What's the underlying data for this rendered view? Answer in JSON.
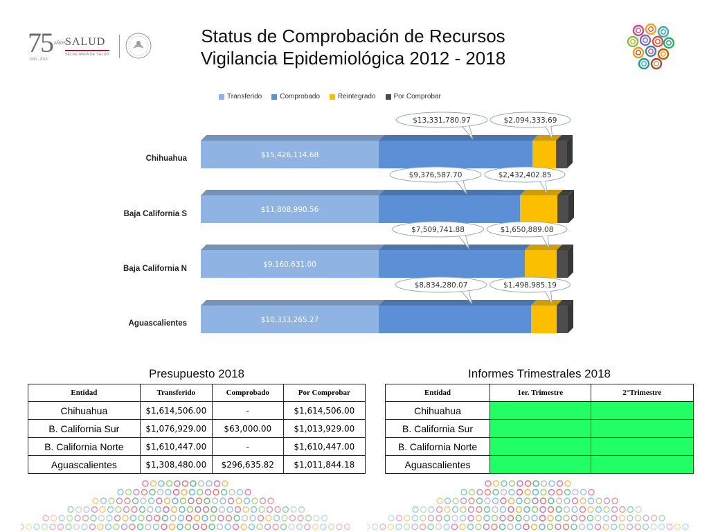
{
  "header": {
    "logo_75": {
      "number": "75",
      "anos": "AÑOS",
      "years": "1943 - 2018"
    },
    "salud": {
      "word": "SALUD",
      "sub": "SECRETARÍA DE SALUD"
    },
    "title_line1": "Status de Comprobación de Recursos",
    "title_line2": "Vigilancia Epidemiológica 2012 - 2018",
    "seal_icon": "mexico-seal-icon",
    "circles_icon": "colored-circles-logo"
  },
  "chart_data": {
    "type": "bar",
    "orientation": "horizontal",
    "stacked": true,
    "style": "3d",
    "categories": [
      "Chihuahua",
      "Baja California S",
      "Baja California N",
      "Aguascalientes"
    ],
    "series": [
      {
        "name": "Transferido",
        "color": "#8fb3e2",
        "values": [
          15426114.68,
          11808990.56,
          9160631.0,
          10333265.27
        ],
        "labels": [
          "$15,426,114.68",
          "$11,808,990.56",
          "$9,160,631.00",
          "$10,333,265.27"
        ]
      },
      {
        "name": "Comprobado",
        "color": "#5b8fd6",
        "values": [
          13331780.97,
          9376587.7,
          7509741.88,
          8834280.07
        ],
        "labels": [
          "$13,331,780.97",
          "$9,376,587.70",
          "$7,509,741.88",
          "$8,834,280.07"
        ]
      },
      {
        "name": "Reintegrado",
        "color": "#fbbf00",
        "values": [
          2094333.69,
          2432402.85,
          1650889.08,
          1498985.19
        ],
        "labels": [
          "$2,094,333.69",
          "$2,432,402.85",
          "$1,650,889.08",
          "$1,498,985.19"
        ]
      },
      {
        "name": "Por Comprobar",
        "color": "#4d4d4d",
        "values": [
          null,
          null,
          null,
          null
        ],
        "labels": [
          "",
          "",
          "",
          ""
        ]
      }
    ],
    "legend_position": "top",
    "grid": false
  },
  "presupuesto": {
    "title": "Presupuesto 2018",
    "headers": [
      "Entidad",
      "Transferido",
      "Comprobado",
      "Por Comprobar"
    ],
    "rows": [
      [
        "Chihuahua",
        "$1,614,506.00",
        "-",
        "$1,614,506.00"
      ],
      [
        "B. California Sur",
        "$1,076,929.00",
        "$63,000.00",
        "$1,013,929.00"
      ],
      [
        "B. California Norte",
        "$1,610,447.00",
        "-",
        "$1,610,447.00"
      ],
      [
        "Aguascalientes",
        "$1,308,480.00",
        "$296,635.82",
        "$1,011,844.18"
      ]
    ]
  },
  "informes": {
    "title": "Informes Trimestrales 2018",
    "headers": [
      "Entidad",
      "1er. Trimestre",
      "2°Trimestre"
    ],
    "rows": [
      [
        "Chihuahua",
        "",
        ""
      ],
      [
        "B. California Sur",
        "",
        ""
      ],
      [
        "B. California Norte",
        "",
        ""
      ],
      [
        "Aguascalientes",
        "",
        ""
      ]
    ],
    "status_color": "#22ff66"
  },
  "decor": {
    "dots_icon": "decorative-dot-pattern"
  }
}
